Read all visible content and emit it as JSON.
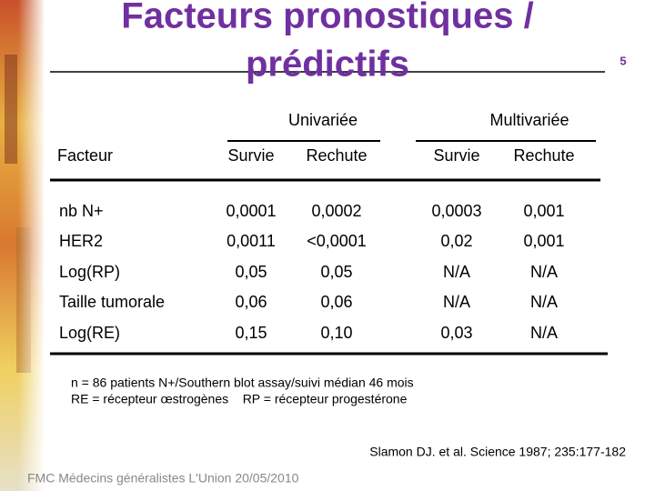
{
  "header": {
    "title_line1": "Facteurs pronostiques /",
    "title_line2": "prédictifs",
    "page_number": "5"
  },
  "table": {
    "groups": [
      "Univariée",
      "Multivariée"
    ],
    "columns": [
      "Facteur",
      "Survie",
      "Rechute",
      "Survie",
      "Rechute"
    ],
    "rows": [
      [
        "nb N+",
        "0,0001",
        "0,0002",
        "0,0003",
        "0,001"
      ],
      [
        "HER2",
        "0,0011",
        "<0,0001",
        "0,02",
        "0,001"
      ],
      [
        "Log(RP)",
        "0,05",
        "0,05",
        "N/A",
        "N/A"
      ],
      [
        "Taille tumorale",
        "0,06",
        "0,06",
        "N/A",
        "N/A"
      ],
      [
        "Log(RE)",
        "0,15",
        "0,10",
        "0,03",
        "N/A"
      ]
    ]
  },
  "notes": [
    "n = 86 patients N+/Southern blot assay/suivi médian 46 mois",
    "RE = récepteur œstrogènes    RP = récepteur progestérone"
  ],
  "citation": "Slamon DJ. et al. Science 1987; 235:177-182",
  "footer": "FMC Médecins généralistes L'Union 20/05/2010"
}
